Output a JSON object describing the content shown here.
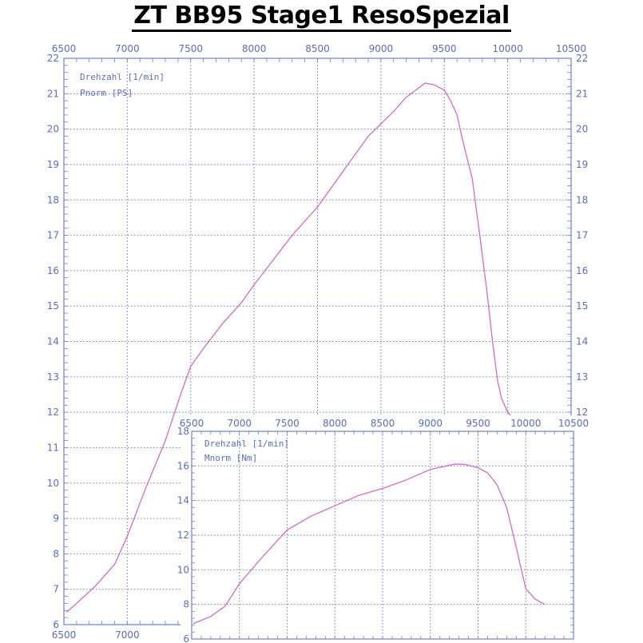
{
  "title": "ZT BB95 Stage1 ResoSpezial",
  "colors": {
    "axis": "#7080c8",
    "text": "#5a6fb0",
    "curve": "#cc6fbf",
    "background": "#ffffff"
  },
  "chart_data": [
    {
      "type": "line",
      "title": "",
      "legend": [
        "Drehzahl [1/min]",
        "Pnorm [PS]"
      ],
      "legend_position": "top-left",
      "xlabel": "Drehzahl [1/min]",
      "ylabel": "Pnorm [PS]",
      "xlim": [
        6500,
        10500
      ],
      "ylim": [
        6,
        22
      ],
      "x_ticks": [
        6500,
        7000,
        7500,
        8000,
        8500,
        9000,
        9500,
        10000,
        10500
      ],
      "y_ticks": [
        6,
        7,
        8,
        9,
        10,
        11,
        12,
        13,
        14,
        15,
        16,
        17,
        18,
        19,
        20,
        21,
        22
      ],
      "x_tick_labels_bottom": [
        "6500",
        "7000"
      ],
      "grid": true,
      "series": [
        {
          "x": [
            6520,
            6600,
            6750,
            6900,
            7000,
            7150,
            7300,
            7420,
            7500,
            7600,
            7750,
            7900,
            8000,
            8150,
            8300,
            8500,
            8700,
            8900,
            9100,
            9200,
            9350,
            9420,
            9500,
            9550,
            9600,
            9650,
            9720,
            9780,
            9840,
            9880,
            9920,
            9950,
            10000,
            10050
          ],
          "y": [
            6.35,
            6.6,
            7.1,
            7.7,
            8.5,
            9.9,
            11.2,
            12.5,
            13.3,
            13.8,
            14.5,
            15.1,
            15.6,
            16.3,
            17.0,
            17.8,
            18.8,
            19.8,
            20.5,
            20.9,
            21.3,
            21.25,
            21.1,
            20.8,
            20.4,
            19.6,
            18.6,
            17.0,
            15.3,
            14.0,
            12.9,
            12.4,
            12.0,
            11.8
          ]
        }
      ]
    },
    {
      "type": "line",
      "title": "",
      "legend": [
        "Drehzahl [1/min]",
        "Mnorm [Nm]"
      ],
      "legend_position": "top-left",
      "xlabel": "Drehzahl [1/min]",
      "ylabel": "Mnorm [Nm]",
      "xlim": [
        6500,
        10500
      ],
      "ylim": [
        6,
        18
      ],
      "x_ticks": [
        6500,
        7000,
        7500,
        8000,
        8500,
        9000,
        9500,
        10000,
        10500
      ],
      "y_ticks": [
        6,
        8,
        10,
        12,
        14,
        16,
        18
      ],
      "grid": true,
      "series": [
        {
          "x": [
            6520,
            6700,
            6850,
            7000,
            7250,
            7500,
            7750,
            8000,
            8250,
            8500,
            8750,
            9000,
            9250,
            9350,
            9500,
            9600,
            9700,
            9800,
            9900,
            10000,
            10100,
            10200
          ],
          "y": [
            6.9,
            7.3,
            7.9,
            9.2,
            10.8,
            12.3,
            13.1,
            13.7,
            14.3,
            14.7,
            15.2,
            15.8,
            16.1,
            16.1,
            15.9,
            15.6,
            14.9,
            13.6,
            11.3,
            8.9,
            8.3,
            8.0
          ]
        }
      ]
    }
  ]
}
